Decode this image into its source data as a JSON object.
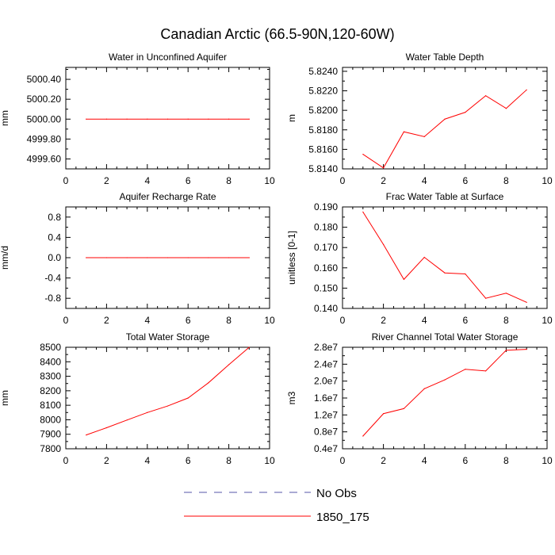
{
  "title": "Canadian Arctic (66.5-90N,120-60W)",
  "colors": {
    "model_line": "#ff0000",
    "obs_line": "#5555aa",
    "axis": "#000000",
    "background": "#ffffff"
  },
  "legend": {
    "placement": "bottom-center",
    "entries": [
      {
        "label": "No Obs",
        "color": "#5555aa",
        "style": "dashed"
      },
      {
        "label": "1850_175",
        "color": "#ff0000",
        "style": "solid"
      }
    ]
  },
  "chart_data": [
    {
      "type": "line",
      "title": "Water in Unconfined Aquifer",
      "ylabel": "mm",
      "xlim": [
        0,
        10
      ],
      "ylim": [
        4999.5,
        5000.52
      ],
      "xticks": [
        0,
        2,
        4,
        6,
        8,
        10
      ],
      "yticks": [
        4999.6,
        4999.8,
        5000.0,
        5000.2,
        5000.4
      ],
      "ytick_labels": [
        "4999.60",
        "4999.80",
        "5000.00",
        "5000.20",
        "5000.40"
      ],
      "series": [
        {
          "x": [
            1,
            2,
            3,
            4,
            5,
            6,
            7,
            8,
            9
          ],
          "values": [
            5000.0,
            5000.0,
            5000.0,
            5000.0,
            5000.0,
            5000.0,
            5000.0,
            5000.0,
            5000.0
          ]
        }
      ]
    },
    {
      "type": "line",
      "title": "Water Table Depth",
      "ylabel": "m",
      "xlim": [
        0,
        10
      ],
      "ylim": [
        5.814,
        5.8244
      ],
      "xticks": [
        0,
        2,
        4,
        6,
        8,
        10
      ],
      "yticks": [
        5.814,
        5.816,
        5.818,
        5.82,
        5.822,
        5.824
      ],
      "ytick_labels": [
        "5.8140",
        "5.8160",
        "5.8180",
        "5.8200",
        "5.8220",
        "5.8240"
      ],
      "series": [
        {
          "x": [
            1,
            2,
            3,
            4,
            5,
            6,
            7,
            8,
            9
          ],
          "values": [
            5.8155,
            5.8141,
            5.8178,
            5.8173,
            5.8191,
            5.8198,
            5.8215,
            5.8202,
            5.8221
          ]
        }
      ]
    },
    {
      "type": "line",
      "title": "Aquifer Recharge Rate",
      "ylabel": "mm/d",
      "xlim": [
        0,
        10
      ],
      "ylim": [
        -1.0,
        1.0
      ],
      "xticks": [
        0,
        2,
        4,
        6,
        8,
        10
      ],
      "yticks": [
        -0.8,
        -0.4,
        0.0,
        0.4,
        0.8
      ],
      "ytick_labels": [
        "-0.8",
        "-0.4",
        "0.0",
        "0.4",
        "0.8"
      ],
      "series": [
        {
          "x": [
            1,
            2,
            3,
            4,
            5,
            6,
            7,
            8,
            9
          ],
          "values": [
            0,
            0,
            0,
            0,
            0,
            0,
            0,
            0,
            0
          ]
        }
      ]
    },
    {
      "type": "line",
      "title": "Frac Water Table at Surface",
      "ylabel": "unitless [0-1]",
      "xlim": [
        0,
        10
      ],
      "ylim": [
        0.14,
        0.19
      ],
      "xticks": [
        0,
        2,
        4,
        6,
        8,
        10
      ],
      "yticks": [
        0.14,
        0.15,
        0.16,
        0.17,
        0.18,
        0.19
      ],
      "ytick_labels": [
        "0.140",
        "0.150",
        "0.160",
        "0.170",
        "0.180",
        "0.190"
      ],
      "series": [
        {
          "x": [
            1,
            2,
            3,
            4,
            5,
            6,
            7,
            8,
            9
          ],
          "values": [
            0.1875,
            0.1715,
            0.1543,
            0.1652,
            0.1575,
            0.157,
            0.145,
            0.1475,
            0.143
          ]
        }
      ]
    },
    {
      "type": "line",
      "title": "Total Water Storage",
      "ylabel": "mm",
      "xlim": [
        0,
        10
      ],
      "ylim": [
        7800,
        8500
      ],
      "xticks": [
        0,
        2,
        4,
        6,
        8,
        10
      ],
      "yticks": [
        7800,
        7900,
        8000,
        8100,
        8200,
        8300,
        8400,
        8500
      ],
      "ytick_labels": [
        "7800",
        "7900",
        "8000",
        "8100",
        "8200",
        "8300",
        "8400",
        "8500"
      ],
      "series": [
        {
          "x": [
            1,
            2,
            3,
            4,
            5,
            6,
            7,
            8,
            9
          ],
          "values": [
            7895,
            7945,
            7998,
            8050,
            8095,
            8150,
            8255,
            8380,
            8500
          ]
        }
      ]
    },
    {
      "type": "line",
      "title": "River Channel Total Water Storage",
      "ylabel": "m3",
      "xlim": [
        0,
        10
      ],
      "ylim": [
        4000000,
        28000000
      ],
      "xticks": [
        0,
        2,
        4,
        6,
        8,
        10
      ],
      "yticks": [
        4000000,
        8000000,
        12000000,
        16000000,
        20000000,
        24000000,
        28000000
      ],
      "ytick_labels": [
        "0.4e7",
        "0.8e7",
        "1.2e7",
        "1.6e7",
        "2.0e7",
        "2.4e7",
        "2.8e7"
      ],
      "series": [
        {
          "x": [
            1,
            2,
            3,
            4,
            5,
            6,
            7,
            8,
            9
          ],
          "values": [
            7000000,
            12300000,
            13500000,
            18200000,
            20300000,
            22800000,
            22400000,
            27300000,
            27500000
          ]
        }
      ]
    }
  ]
}
